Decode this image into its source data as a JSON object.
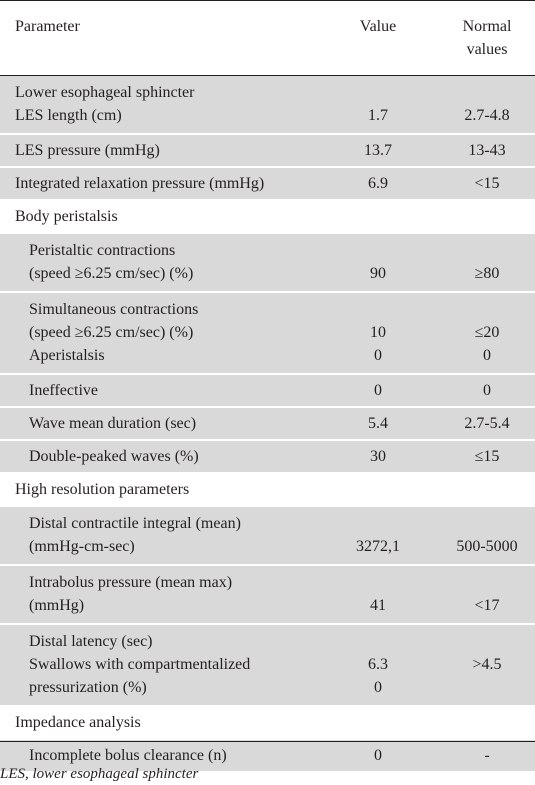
{
  "headers": {
    "parameter": "Parameter",
    "value": "Value",
    "normal_line1": "Normal",
    "normal_line2": "values"
  },
  "rows": [
    {
      "shade": true,
      "indent": false,
      "param": [
        "Lower esophageal sphincter",
        "LES length (cm)"
      ],
      "value": [
        "",
        "1.7"
      ],
      "normal": [
        "",
        "2.7-4.8"
      ]
    },
    {
      "shade": true,
      "indent": false,
      "param": [
        "LES pressure (mmHg)"
      ],
      "value": [
        "13.7"
      ],
      "normal": [
        "13-43"
      ]
    },
    {
      "shade": true,
      "indent": false,
      "param": [
        "Integrated relaxation pressure (mmHg)"
      ],
      "value": [
        "6.9"
      ],
      "normal": [
        "<15"
      ]
    },
    {
      "shade": false,
      "indent": false,
      "param": [
        "Body peristalsis"
      ],
      "value": [
        ""
      ],
      "normal": [
        ""
      ]
    },
    {
      "shade": true,
      "indent": true,
      "param": [
        "Peristaltic contractions",
        "(speed ≥6.25 cm/sec) (%)"
      ],
      "value": [
        "",
        "90"
      ],
      "normal": [
        "",
        "≥80"
      ]
    },
    {
      "shade": true,
      "indent": true,
      "param": [
        "Simultaneous contractions",
        "(speed ≥6.25 cm/sec) (%)",
        "Aperistalsis"
      ],
      "value": [
        "",
        "10",
        "0"
      ],
      "normal": [
        "",
        "≤20",
        "0"
      ]
    },
    {
      "shade": true,
      "indent": true,
      "param": [
        "Ineffective"
      ],
      "value": [
        "0"
      ],
      "normal": [
        "0"
      ]
    },
    {
      "shade": true,
      "indent": true,
      "param": [
        "Wave mean duration (sec)"
      ],
      "value": [
        "5.4"
      ],
      "normal": [
        "2.7-5.4"
      ]
    },
    {
      "shade": true,
      "indent": true,
      "param": [
        "Double-peaked waves (%)"
      ],
      "value": [
        "30"
      ],
      "normal": [
        "≤15"
      ]
    },
    {
      "shade": false,
      "indent": false,
      "param": [
        "High resolution parameters"
      ],
      "value": [
        ""
      ],
      "normal": [
        ""
      ]
    },
    {
      "shade": true,
      "indent": true,
      "param": [
        "Distal contractile integral (mean)",
        "(mmHg-cm-sec)"
      ],
      "value": [
        "",
        "3272,1"
      ],
      "normal": [
        "",
        "500-5000"
      ]
    },
    {
      "shade": true,
      "indent": true,
      "param": [
        "Intrabolus pressure (mean max)",
        "(mmHg)"
      ],
      "value": [
        "",
        "41"
      ],
      "normal": [
        "",
        "<17"
      ]
    },
    {
      "shade": true,
      "indent": true,
      "param": [
        "Distal latency (sec)",
        "Swallows with compartmentalized",
        "pressurization (%)"
      ],
      "value": [
        "",
        "6.3",
        "0"
      ],
      "normal": [
        "",
        ">4.5",
        ""
      ]
    },
    {
      "shade": false,
      "indent": false,
      "param": [
        "Impedance analysis"
      ],
      "value": [
        ""
      ],
      "normal": [
        ""
      ]
    },
    {
      "shade": true,
      "indent": true,
      "param": [
        "Incomplete bolus clearance (n)"
      ],
      "value": [
        "0"
      ],
      "normal": [
        "-"
      ]
    }
  ],
  "footnote": "LES, lower esophageal sphincter"
}
